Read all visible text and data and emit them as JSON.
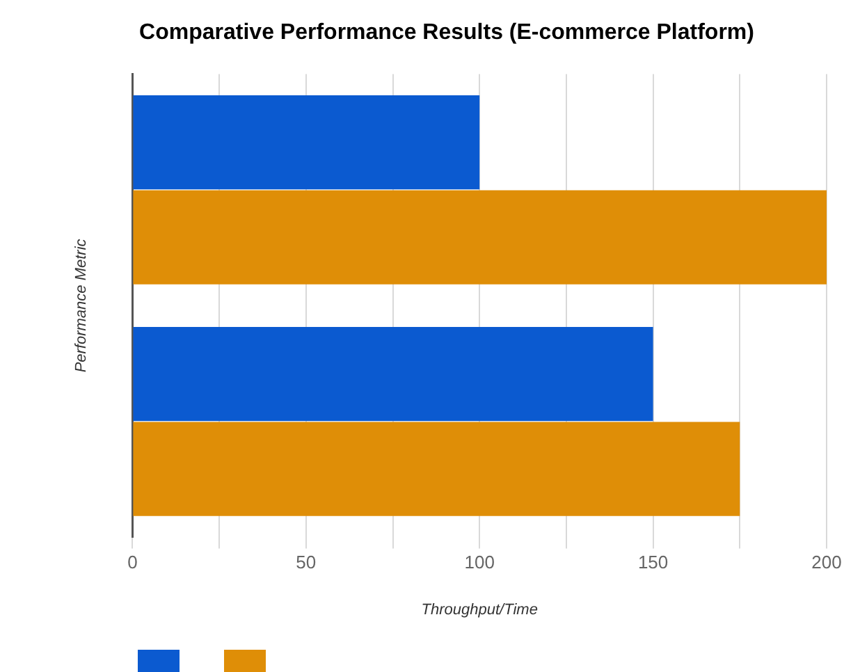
{
  "chart_data": {
    "type": "bar",
    "orientation": "horizontal",
    "title": "Comparative Performance Results (E-commerce Platform)",
    "xlabel": "Throughput/Time",
    "ylabel": "Performance Metric",
    "categories": [
      null,
      null
    ],
    "series": [
      {
        "color": "#0b5ad0",
        "values": [
          100,
          150
        ]
      },
      {
        "color": "#df8e07",
        "values": [
          200,
          175
        ]
      }
    ],
    "xlim": [
      0,
      200
    ],
    "xticks": [
      0,
      {
        "value": 25,
        "label": null
      },
      50,
      {
        "value": 75,
        "label": null
      },
      100,
      {
        "value": 125,
        "label": null
      },
      150,
      {
        "value": 175,
        "label": null
      },
      200
    ],
    "grid": "x"
  }
}
